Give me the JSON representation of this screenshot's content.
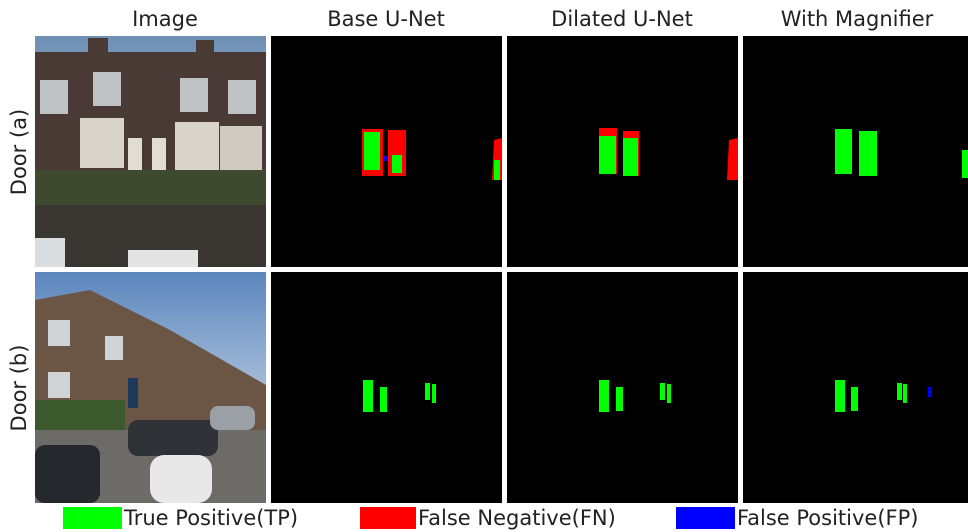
{
  "columns": [
    "Image",
    "Base U-Net",
    "Dilated U-Net",
    "With Magnifier"
  ],
  "rows": [
    "Door (a)",
    "Door (b)"
  ],
  "legend": [
    {
      "label": "True Positive(TP)",
      "color": "#00ff00"
    },
    {
      "label": "False Negative(FN)",
      "color": "#ff0000"
    },
    {
      "label": "False Positive(FP)",
      "color": "#0000ff"
    }
  ]
}
